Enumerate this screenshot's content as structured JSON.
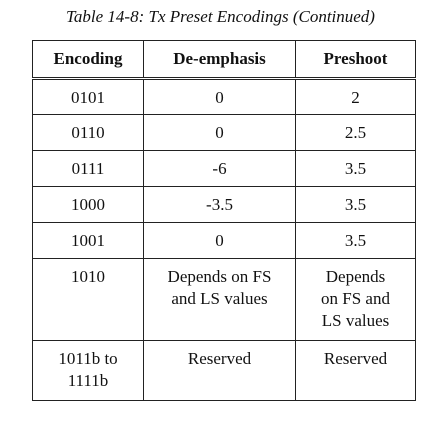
{
  "caption": "Table 14-8: Tx Preset Encodings (Continued)",
  "table": {
    "headers": [
      "Encoding",
      "De-emphasis",
      "Preshoot"
    ],
    "rows": [
      [
        "0101",
        "0",
        "2"
      ],
      [
        "0110",
        "0",
        "2.5"
      ],
      [
        "0111",
        "-6",
        "3.5"
      ],
      [
        "1000",
        "-3.5",
        "3.5"
      ],
      [
        "1001",
        "0",
        "3.5"
      ],
      [
        "1010",
        "Depends on FS\nand LS values",
        "Depends\non FS and\nLS values"
      ],
      [
        "1011b to\n1111b",
        "Reserved",
        "Reserved"
      ]
    ]
  }
}
